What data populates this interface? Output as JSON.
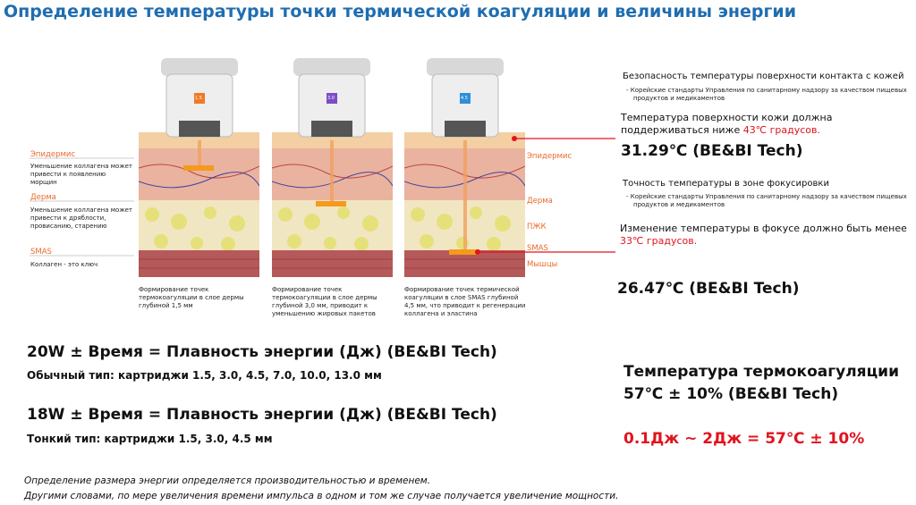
{
  "header": {
    "title": "Определение температуры точки термической коагуляции и величины энергии"
  },
  "left_labels": [
    {
      "title": "Эпидермис",
      "text": "Уменьшение коллагена может привести к появлению морщин"
    },
    {
      "title": "Дерма",
      "text": "Уменьшение коллагена может привести к дряблости, провисанию, старению"
    },
    {
      "title": "SMAS",
      "text": "Коллаген - это ключ"
    }
  ],
  "panels": [
    {
      "cartridge": "1.5",
      "caption": "Формирование точек термокоагуляции в слое дермы глубиной 1,5 мм"
    },
    {
      "cartridge": "3.0",
      "caption": "Формирование точек термокоагуляции в слое дермы глубиной 3,0 мм, приводит к уменьшению жировых пакетов"
    },
    {
      "cartridge": "4.5",
      "caption": "Формирование точек термической коагуляции в слое SMAS глубиной 4,5 мм, что приводит к регенерации коллагена и эластина"
    }
  ],
  "layer_labels": [
    "Эпидермис",
    "Дерма",
    "ПЖК",
    "SMAS",
    "Мышцы"
  ],
  "surface": {
    "heading": "Безопасность температуры поверхности контакта с кожей",
    "standard": "- Корейские стандарты Управления по санитарному надзору за качеством пищевых продуктов и медикаментов",
    "requirement": "Температура поверхности кожи должна поддерживаться ниже ",
    "limit": "43℃ градусов.",
    "result": "31.29℃  (BE&BI Tech)"
  },
  "focus": {
    "heading": "Точность температуры в зоне фокусировки",
    "standard": "- Корейские стандарты Управления по санитарному надзору за качеством пищевых продуктов и медикаментов",
    "requirement": "Изменение температуры в фокусе должно быть менее ",
    "limit": "33℃ градусов.",
    "result": "26.47℃  (BE&BI Tech)"
  },
  "energy": [
    {
      "formula": "20W ± Время = Плавность энергии (Дж) (BE&BI Tech)",
      "cartridges": "Обычный тип: картриджи 1.5, 3.0, 4.5, 7.0, 10.0, 13.0 мм"
    },
    {
      "formula": "18W ± Время = Плавность энергии (Дж) (BE&BI Tech)",
      "cartridges": "Тонкий тип: картриджи 1.5, 3.0, 4.5 мм"
    }
  ],
  "coagulation": {
    "title": "Температура термокоагуляции",
    "value": "57℃  ± 10%  (BE&BI Tech)",
    "range": "0.1Дж ~ 2Дж = 57℃  ± 10%"
  },
  "footer": [
    "Определение размера энергии определяется производительностью и временем.",
    "Другими словами, по мере увеличения времени импульса в одном и том же случае получается увеличение мощности."
  ]
}
